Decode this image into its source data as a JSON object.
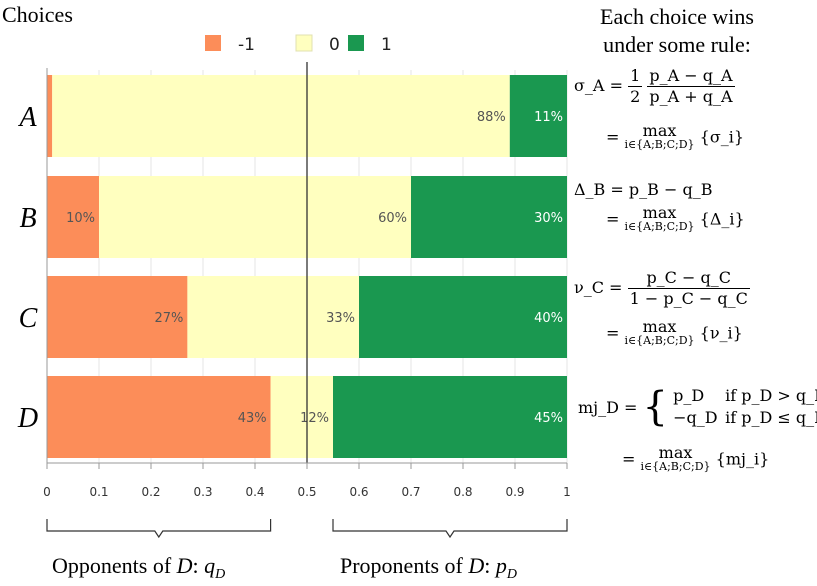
{
  "header": {
    "left_title": "Choices",
    "right_title_line1": "Each choice wins",
    "right_title_line2": "under some rule:"
  },
  "legend": [
    {
      "label": "-1",
      "color": "#fc8d59"
    },
    {
      "label": "0",
      "color": "#ffffbf"
    },
    {
      "label": "1",
      "color": "#1a9850"
    }
  ],
  "chart_data": {
    "type": "bar",
    "orientation": "horizontal",
    "stacked": true,
    "categories": [
      "A",
      "B",
      "C",
      "D"
    ],
    "series": [
      {
        "name": "-1",
        "color": "#fc8d59",
        "values": [
          0.01,
          0.1,
          0.27,
          0.43
        ],
        "labels": [
          "",
          "10%",
          "27%",
          "43%"
        ]
      },
      {
        "name": "0",
        "color": "#ffffbf",
        "values": [
          0.88,
          0.6,
          0.33,
          0.12
        ],
        "labels": [
          "88%",
          "60%",
          "33%",
          "12%"
        ]
      },
      {
        "name": "1",
        "color": "#1a9850",
        "values": [
          0.11,
          0.3,
          0.4,
          0.45
        ],
        "labels": [
          "11%",
          "30%",
          "40%",
          "45%"
        ]
      }
    ],
    "xlim": [
      0,
      1
    ],
    "xticks": [
      "0",
      "0.1",
      "0.2",
      "0.3",
      "0.4",
      "0.5",
      "0.6",
      "0.7",
      "0.8",
      "0.9",
      "1"
    ],
    "reference_line": 0.5,
    "annotations": {
      "opponents_range": [
        0,
        0.43
      ],
      "proponents_range": [
        0.55,
        1
      ]
    }
  },
  "brackets": {
    "opponents_prefix": "Opponents of ",
    "opponents_var": "D",
    "opponents_suffix": ": ",
    "opponents_sym": "q",
    "opponents_sub": "D",
    "proponents_prefix": "Proponents of ",
    "proponents_var": "D",
    "proponents_suffix": ": ",
    "proponents_sym": "p",
    "proponents_sub": "D"
  },
  "formulas": {
    "sigma_lhs": "σ_A =",
    "sigma_coef_num": "1",
    "sigma_coef_den": "2",
    "sigma_num": "p_A − q_A",
    "sigma_den": "p_A + q_A",
    "sigma_max_arg": "{σ_i}",
    "delta_lhs": "Δ_B = p_B − q_B",
    "delta_max_arg": "{Δ_i}",
    "nu_lhs": "ν_C =",
    "nu_num": "p_C − q_C",
    "nu_den": "1 − p_C − q_C",
    "nu_max_arg": "{ν_i}",
    "mj_lhs": "mj_D =",
    "mj_case1_val": "p_D",
    "mj_case1_cond": "if p_D > q_D",
    "mj_case2_val": "−q_D",
    "mj_case2_cond": "if p_D ≤ q_D",
    "mj_max_arg": "{mj_i}",
    "equals": "=",
    "max_word": "max",
    "max_sub": "i∈{A;B;C;D}"
  }
}
